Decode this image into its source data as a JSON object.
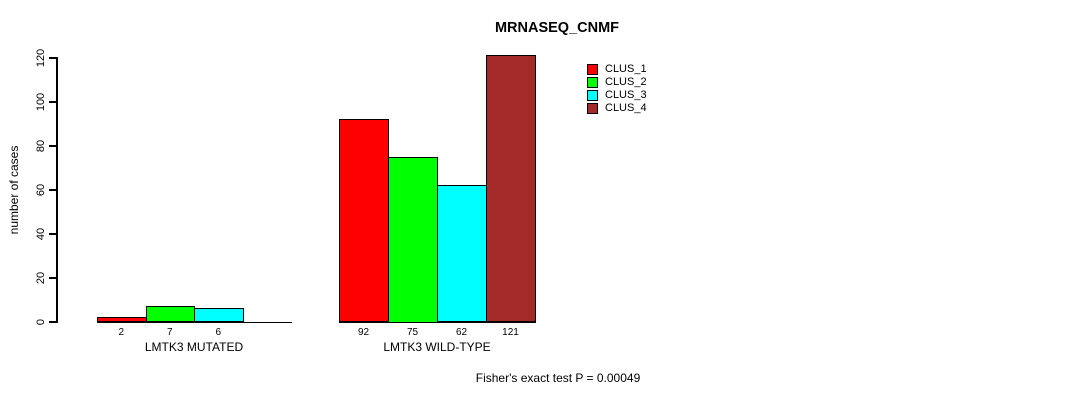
{
  "chart_data": {
    "type": "bar",
    "title": "MRNASEQ_CNMF",
    "xlabel": "",
    "ylabel": "number of cases",
    "groups": [
      "LMTK3 MUTATED",
      "LMTK3 WILD-TYPE"
    ],
    "series": [
      {
        "name": "CLUS_1",
        "color": "#FF0000",
        "values": [
          2,
          92
        ]
      },
      {
        "name": "CLUS_2",
        "color": "#00FF00",
        "values": [
          7,
          75
        ]
      },
      {
        "name": "CLUS_3",
        "color": "#00FFFF",
        "values": [
          6,
          62
        ]
      },
      {
        "name": "CLUS_4",
        "color": "#A52A2A",
        "values": [
          0,
          121
        ]
      }
    ],
    "bar_value_labels": [
      [
        "2",
        "7",
        "6",
        ""
      ],
      [
        "92",
        "75",
        "62",
        "121"
      ]
    ],
    "yticks": [
      0,
      20,
      40,
      60,
      80,
      100,
      120
    ],
    "ylim": [
      0,
      121
    ],
    "grid": false,
    "legend": {
      "position": "top-right",
      "entries": [
        "CLUS_1",
        "CLUS_2",
        "CLUS_3",
        "CLUS_4"
      ]
    },
    "annotation": "Fisher's exact test P = 0.00049"
  }
}
